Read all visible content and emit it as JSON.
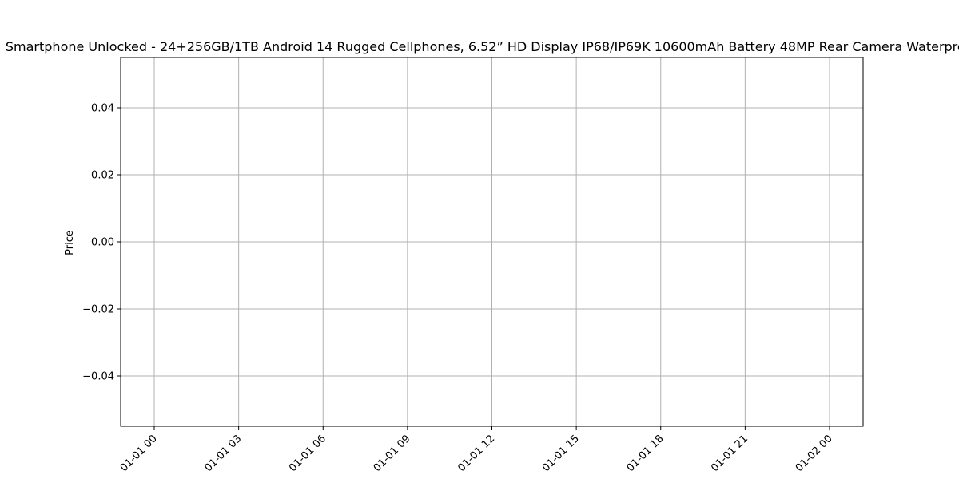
{
  "chart_data": {
    "type": "line",
    "title": "Smartphone Unlocked - 24+256GB/1TB Android 14 Rugged Cellphones, 6.52” HD Display IP68/IP69K 10600mAh Battery 48MP Rear Camera Waterproof",
    "xlabel": "",
    "ylabel": "Price",
    "x_tick_labels": [
      "01-01 00",
      "01-01 03",
      "01-01 06",
      "01-01 09",
      "01-01 12",
      "01-01 15",
      "01-01 18",
      "01-01 21",
      "01-02 00"
    ],
    "y_tick_labels": [
      "−0.04",
      "−0.02",
      "0.00",
      "0.02",
      "0.04"
    ],
    "y_ticks": [
      -0.04,
      -0.02,
      0.0,
      0.02,
      0.04
    ],
    "ylim": [
      -0.055,
      0.055
    ],
    "grid": true,
    "series": [],
    "colors": {
      "grid": "#b0b0b0",
      "axes": "#000000",
      "background": "#ffffff"
    }
  }
}
